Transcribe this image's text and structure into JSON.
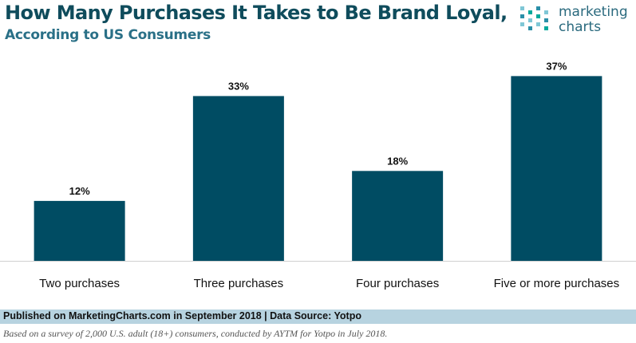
{
  "header": {
    "title": "How Many Purchases It Takes to Be Brand Loyal,",
    "subtitle": "According to US Consumers"
  },
  "logo": {
    "line1": "marketing",
    "line2": "charts"
  },
  "chart_data": {
    "type": "bar",
    "categories": [
      "Two purchases",
      "Three purchases",
      "Four purchases",
      "Five or more purchases"
    ],
    "values": [
      12,
      33,
      18,
      37
    ],
    "value_labels": [
      "12%",
      "33%",
      "18%",
      "37%"
    ],
    "ylim": [
      0,
      40
    ],
    "grid": false,
    "bar_color": "#004c63"
  },
  "footer": {
    "source": "Published on MarketingCharts.com in September 2018 | Data Source: Yotpo",
    "note": "Based on a survey of 2,000 U.S. adult (18+) consumers, conducted by AYTM for Yotpo in July 2018."
  },
  "colors": {
    "title": "#0f4c5c",
    "subtitle": "#2a7087",
    "footer_band": "#b7d3e0"
  }
}
